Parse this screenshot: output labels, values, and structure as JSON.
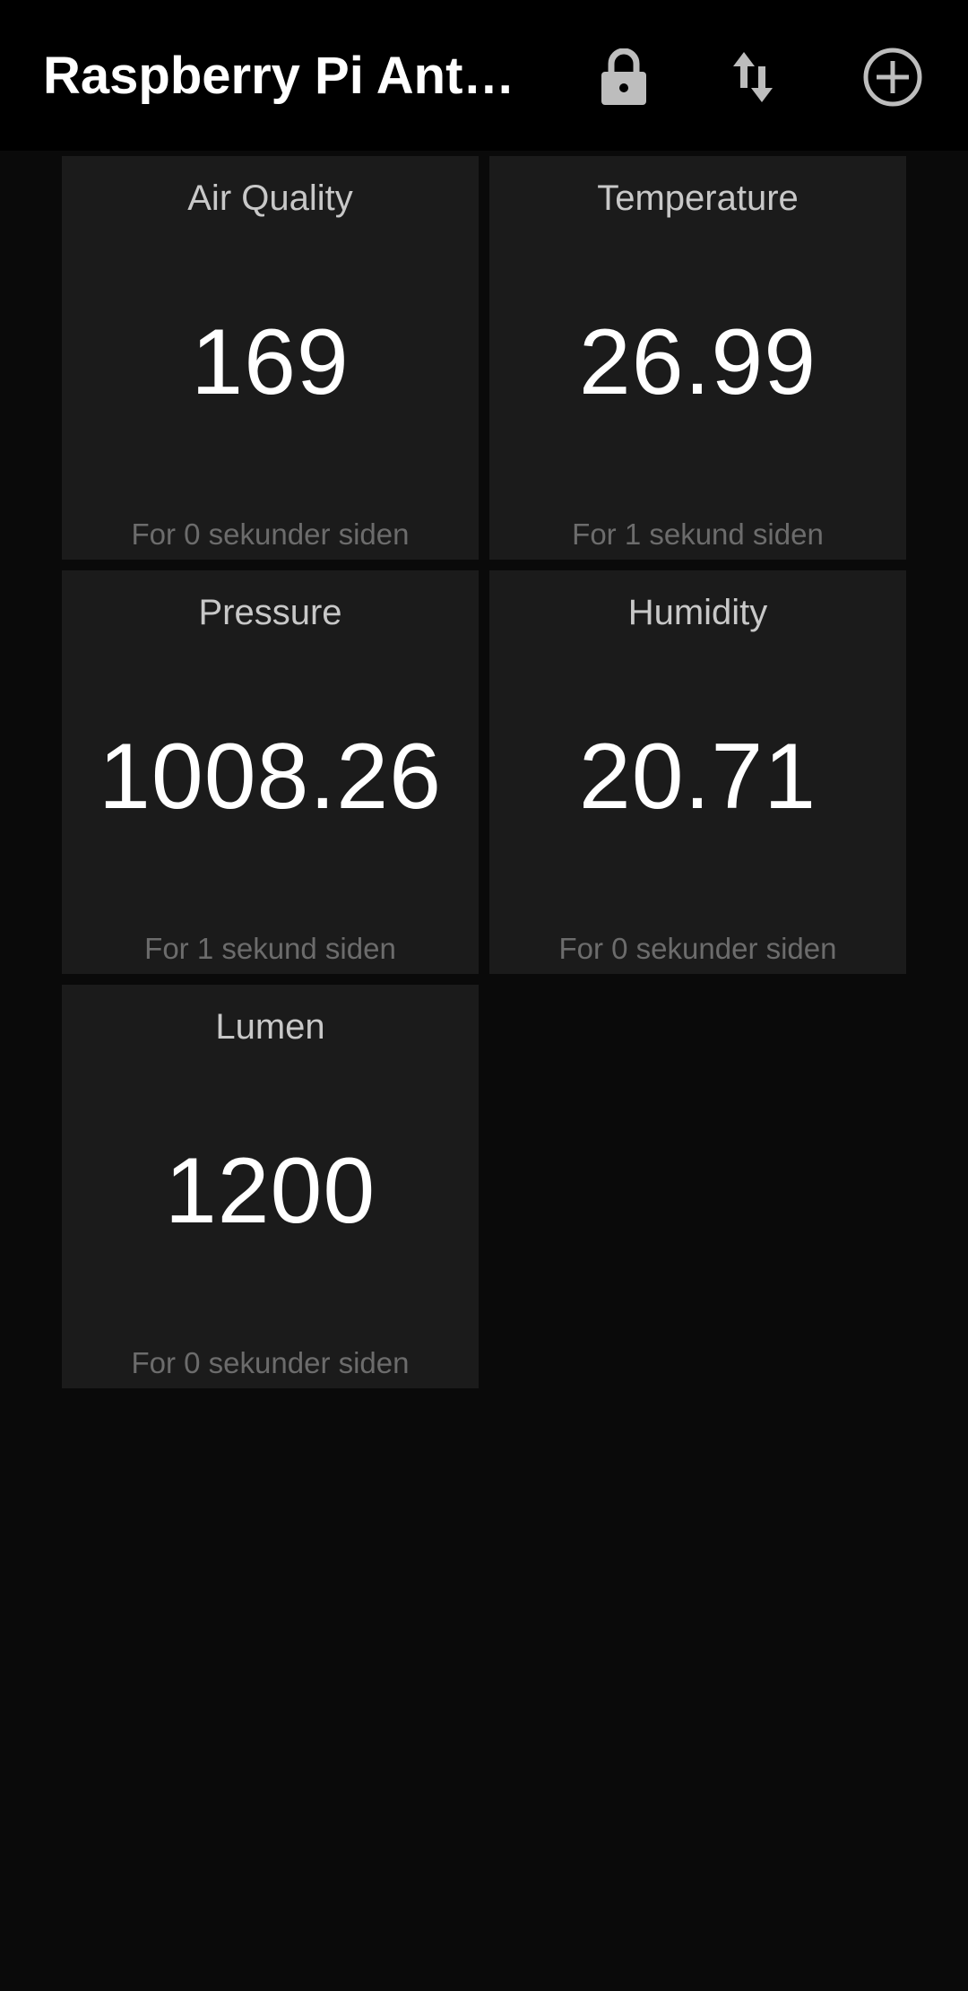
{
  "app_bar": {
    "title": "Raspberry Pi Antar…",
    "actions": [
      {
        "icon": "lock-icon"
      },
      {
        "icon": "sort-arrows-icon"
      },
      {
        "icon": "add-circle-icon"
      }
    ]
  },
  "colors": {
    "app_bar_bg": "#000000",
    "page_bg": "#0a0a0a",
    "tile_bg": "#1b1b1b",
    "title_text": "#c8c8c8",
    "value_text": "#ffffff",
    "time_text": "#6c6c6c"
  },
  "tiles": [
    {
      "title": "Air Quality",
      "value": "169",
      "updated": "For 0 sekunder siden"
    },
    {
      "title": "Temperature",
      "value": "26.99",
      "updated": "For 1 sekund siden"
    },
    {
      "title": "Pressure",
      "value": "1008.26",
      "updated": "For 1 sekund siden"
    },
    {
      "title": "Humidity",
      "value": "20.71",
      "updated": "For 0 sekunder siden"
    },
    {
      "title": "Lumen",
      "value": "1200",
      "updated": "For 0 sekunder siden"
    }
  ]
}
